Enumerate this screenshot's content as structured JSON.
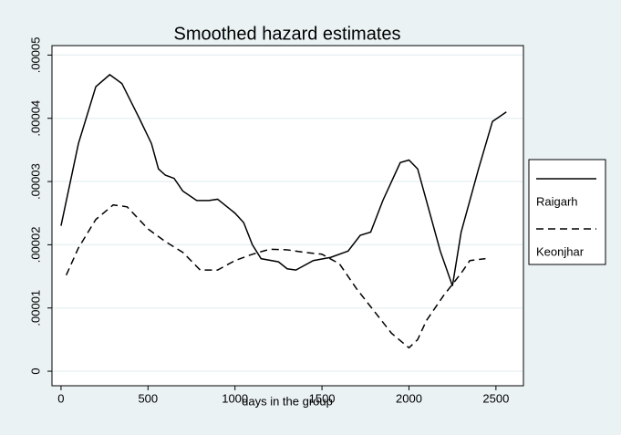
{
  "chart_data": {
    "type": "line",
    "title": "Smoothed hazard estimates",
    "x_label": "days in the group",
    "xlim": [
      -52,
      2658
    ],
    "xticks": [
      0,
      500,
      1000,
      1500,
      2000,
      2500
    ],
    "ylim": [
      -2.3e-06,
      5.15e-05
    ],
    "yticks": [
      0,
      {
        "value": 1e-05,
        "label": ".00001"
      },
      {
        "value": 2e-05,
        "label": ".00002"
      },
      {
        "value": 3e-05,
        "label": ".00003"
      },
      {
        "value": 4e-05,
        "label": ".00004"
      },
      {
        "value": 5e-05,
        "label": ".00005"
      }
    ],
    "grid": true,
    "legend": "right",
    "series": [
      {
        "name": "Raigarh",
        "color": "#000000",
        "dash": "solid",
        "x": [
          0,
          100,
          200,
          280,
          350,
          450,
          520,
          560,
          600,
          650,
          700,
          780,
          850,
          900,
          1000,
          1050,
          1100,
          1150,
          1250,
          1300,
          1350,
          1450,
          1550,
          1650,
          1720,
          1780,
          1850,
          1950,
          2000,
          2050,
          2100,
          2180,
          2250,
          2300,
          2400,
          2480,
          2560
        ],
        "values": [
          2.3e-05,
          3.6e-05,
          4.5e-05,
          4.69e-05,
          4.55e-05,
          4e-05,
          3.6e-05,
          3.2e-05,
          3.1e-05,
          3.05e-05,
          2.85e-05,
          2.7e-05,
          2.7e-05,
          2.72e-05,
          2.5e-05,
          2.35e-05,
          2e-05,
          1.78e-05,
          1.73e-05,
          1.62e-05,
          1.6e-05,
          1.75e-05,
          1.8e-05,
          1.9e-05,
          2.15e-05,
          2.2e-05,
          2.7e-05,
          3.3e-05,
          3.34e-05,
          3.2e-05,
          2.7e-05,
          1.9e-05,
          1.35e-05,
          2.2e-05,
          3.2e-05,
          3.95e-05,
          4.1e-05
        ]
      },
      {
        "name": "Keonjhar",
        "color": "#000000",
        "dash": "dashed",
        "x": [
          30,
          100,
          200,
          300,
          380,
          500,
          600,
          700,
          800,
          900,
          1000,
          1100,
          1200,
          1300,
          1400,
          1500,
          1600,
          1700,
          1800,
          1900,
          2000,
          2050,
          2100,
          2200,
          2300,
          2350,
          2440
        ],
        "values": [
          1.52e-05,
          1.95e-05,
          2.4e-05,
          2.63e-05,
          2.6e-05,
          2.25e-05,
          2.05e-05,
          1.88e-05,
          1.6e-05,
          1.6e-05,
          1.75e-05,
          1.85e-05,
          1.93e-05,
          1.92e-05,
          1.88e-05,
          1.85e-05,
          1.7e-05,
          1.3e-05,
          9.5e-06,
          6e-06,
          3.7e-06,
          5e-06,
          8e-06,
          1.2e-05,
          1.55e-05,
          1.75e-05,
          1.78e-05
        ]
      }
    ]
  }
}
